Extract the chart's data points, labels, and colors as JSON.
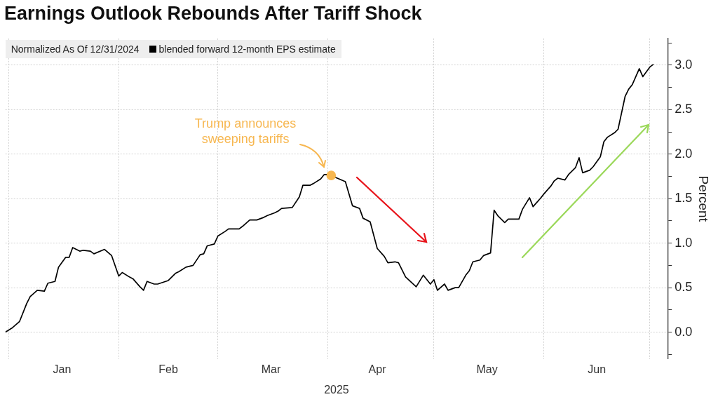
{
  "chart_data": {
    "type": "line",
    "title": "Earnings Outlook Rebounds After Tariff Shock",
    "xlabel": "2025",
    "ylabel": "Percent",
    "legend_title": "Normalized As Of 12/31/2024",
    "legend": "top left",
    "grid": true,
    "x": [
      "2024-12-31",
      "2025-01-02",
      "2025-01-04",
      "2025-01-06",
      "2025-01-07",
      "2025-01-09",
      "2025-01-11",
      "2025-01-12",
      "2025-01-14",
      "2025-01-15",
      "2025-01-17",
      "2025-01-18",
      "2025-01-19",
      "2025-01-21",
      "2025-01-22",
      "2025-01-24",
      "2025-01-25",
      "2025-01-28",
      "2025-01-30",
      "2025-02-01",
      "2025-02-02",
      "2025-02-04",
      "2025-02-05",
      "2025-02-07",
      "2025-02-08",
      "2025-02-09",
      "2025-02-11",
      "2025-02-12",
      "2025-02-15",
      "2025-02-17",
      "2025-02-18",
      "2025-02-20",
      "2025-02-22",
      "2025-02-24",
      "2025-02-25",
      "2025-02-26",
      "2025-02-28",
      "2025-03-01",
      "2025-03-03",
      "2025-03-04",
      "2025-03-07",
      "2025-03-08",
      "2025-03-10",
      "2025-03-12",
      "2025-03-14",
      "2025-03-15",
      "2025-03-17",
      "2025-03-18",
      "2025-03-19",
      "2025-03-22",
      "2025-03-24",
      "2025-03-25",
      "2025-03-27",
      "2025-03-28",
      "2025-03-30",
      "2025-03-31",
      "2025-04-01",
      "2025-04-02",
      "2025-04-06",
      "2025-04-08",
      "2025-04-10",
      "2025-04-11",
      "2025-04-13",
      "2025-04-15",
      "2025-04-17",
      "2025-04-18",
      "2025-04-20",
      "2025-04-21",
      "2025-04-23",
      "2025-04-26",
      "2025-04-28",
      "2025-04-30",
      "2025-05-01",
      "2025-05-02",
      "2025-05-04",
      "2025-05-05",
      "2025-05-07",
      "2025-05-08",
      "2025-05-10",
      "2025-05-11",
      "2025-05-12",
      "2025-05-14",
      "2025-05-15",
      "2025-05-17",
      "2025-05-18",
      "2025-05-19",
      "2025-05-21",
      "2025-05-22",
      "2025-05-25",
      "2025-05-26",
      "2025-05-28",
      "2025-05-29",
      "2025-05-31",
      "2025-06-01",
      "2025-06-03",
      "2025-06-04",
      "2025-06-05",
      "2025-06-07",
      "2025-06-08",
      "2025-06-10",
      "2025-06-11",
      "2025-06-12",
      "2025-06-14",
      "2025-06-15",
      "2025-06-17",
      "2025-06-18",
      "2025-06-19",
      "2025-06-21",
      "2025-06-22",
      "2025-06-24",
      "2025-06-25",
      "2025-06-26",
      "2025-06-28",
      "2025-06-29",
      "2025-07-01",
      "2025-07-02"
    ],
    "series": [
      {
        "type": "scatter",
        "color": "#f7b750",
        "x": [
          "2025-04-02"
        ],
        "values": [
          1.76
        ]
      },
      {
        "name": "blended forward 12-month EPS estimate",
        "color": "#000000",
        "values": [
          0,
          0.05,
          0.12,
          0.32,
          0.4,
          0.47,
          0.46,
          0.55,
          0.57,
          0.73,
          0.84,
          0.84,
          0.95,
          0.91,
          0.92,
          0.91,
          0.88,
          0.93,
          0.86,
          0.63,
          0.67,
          0.62,
          0.6,
          0.51,
          0.47,
          0.57,
          0.54,
          0.54,
          0.58,
          0.66,
          0.68,
          0.73,
          0.75,
          0.87,
          0.88,
          0.97,
          0.99,
          1.08,
          1.13,
          1.16,
          1.16,
          1.19,
          1.26,
          1.26,
          1.29,
          1.31,
          1.34,
          1.36,
          1.39,
          1.4,
          1.52,
          1.65,
          1.65,
          1.67,
          1.72,
          1.77,
          1.77,
          1.76,
          1.69,
          1.42,
          1.39,
          1.28,
          1.24,
          0.94,
          0.85,
          0.78,
          0.79,
          0.78,
          0.62,
          0.51,
          0.64,
          0.54,
          0.59,
          0.47,
          0.54,
          0.47,
          0.5,
          0.5,
          0.64,
          0.69,
          0.79,
          0.81,
          0.86,
          0.89,
          1.37,
          1.31,
          1.23,
          1.27,
          1.27,
          1.38,
          1.51,
          1.41,
          1.5,
          1.55,
          1.64,
          1.7,
          1.73,
          1.71,
          1.77,
          1.85,
          1.96,
          1.79,
          1.82,
          1.86,
          1.97,
          2.14,
          2.19,
          2.24,
          2.28,
          2.65,
          2.73,
          2.78,
          2.96,
          2.87,
          2.98,
          3.01
        ]
      }
    ],
    "xlim": [
      "2024-12-31",
      "2025-07-06"
    ],
    "xticks": [
      {
        "value": "2025-01-01",
        "label": null
      },
      {
        "value": "2025-01-16",
        "label": "Jan"
      },
      {
        "value": "2025-02-01",
        "label": null
      },
      {
        "value": "2025-02-15",
        "label": "Feb"
      },
      {
        "value": "2025-03-01",
        "label": null
      },
      {
        "value": "2025-03-16",
        "label": "Mar"
      },
      {
        "value": "2025-04-01",
        "label": null
      },
      {
        "value": "2025-04-15",
        "label": "Apr"
      },
      {
        "value": "2025-05-01",
        "label": null
      },
      {
        "value": "2025-05-16",
        "label": "May"
      },
      {
        "value": "2025-06-01",
        "label": null
      },
      {
        "value": "2025-06-16",
        "label": "Jun"
      },
      {
        "value": "2025-07-01",
        "label": null
      }
    ],
    "ylim": [
      -0.3,
      3.3
    ],
    "yticks": [
      {
        "value": -0.25,
        "label": null
      },
      {
        "value": 0,
        "label": "0.0"
      },
      {
        "value": 0.25,
        "label": null
      },
      {
        "value": 0.5,
        "label": "0.5"
      },
      {
        "value": 0.75,
        "label": null
      },
      {
        "value": 1,
        "label": "1.0"
      },
      {
        "value": 1.25,
        "label": null
      },
      {
        "value": 1.5,
        "label": "1.5"
      },
      {
        "value": 1.75,
        "label": null
      },
      {
        "value": 2,
        "label": "2.0"
      },
      {
        "value": 2.25,
        "label": null
      },
      {
        "value": 2.5,
        "label": "2.5"
      },
      {
        "value": 2.75,
        "label": null
      },
      {
        "value": 3,
        "label": "3.0"
      },
      {
        "value": 3.25,
        "label": null
      }
    ],
    "annotations": [
      "Trump announces sweeping tariffs"
    ]
  }
}
